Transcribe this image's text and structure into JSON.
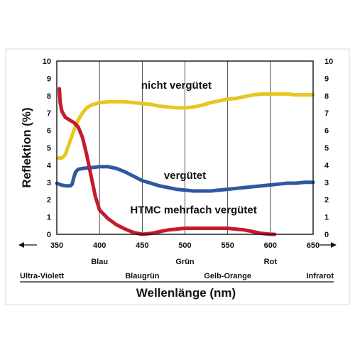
{
  "chart_data": {
    "type": "line",
    "title": "",
    "xlabel": "Wellenlänge (nm)",
    "ylabel": "Reflektion (%)",
    "xlim": [
      350,
      650
    ],
    "ylim": [
      0,
      10
    ],
    "x_ticks": [
      350,
      400,
      450,
      500,
      550,
      600,
      650
    ],
    "y_ticks": [
      0,
      1,
      2,
      3,
      4,
      5,
      6,
      7,
      8,
      9,
      10
    ],
    "grid": {
      "vertical": true,
      "horizontal": false
    },
    "spectrum_labels_top": [
      {
        "text": "Blau",
        "x": 400
      },
      {
        "text": "Grün",
        "x": 500
      },
      {
        "text": "Rot",
        "x": 600
      }
    ],
    "spectrum_labels_bottom": [
      {
        "text": "Ultra-Violett",
        "x": 355
      },
      {
        "text": "Blaugrün",
        "x": 450
      },
      {
        "text": "Gelb-Orange",
        "x": 550
      },
      {
        "text": "Infrarot",
        "x": 650
      }
    ],
    "series": [
      {
        "name": "nicht vergütet",
        "color": "#e6c620",
        "label_pos": {
          "x": 490,
          "y": 8.4
        },
        "points": [
          [
            352,
            4.4
          ],
          [
            356,
            4.4
          ],
          [
            360,
            4.6
          ],
          [
            365,
            5.3
          ],
          [
            370,
            6.0
          ],
          [
            375,
            6.6
          ],
          [
            380,
            7.0
          ],
          [
            385,
            7.3
          ],
          [
            390,
            7.45
          ],
          [
            400,
            7.6
          ],
          [
            410,
            7.65
          ],
          [
            420,
            7.65
          ],
          [
            430,
            7.65
          ],
          [
            440,
            7.6
          ],
          [
            450,
            7.55
          ],
          [
            460,
            7.5
          ],
          [
            470,
            7.4
          ],
          [
            480,
            7.35
          ],
          [
            490,
            7.3
          ],
          [
            500,
            7.3
          ],
          [
            510,
            7.35
          ],
          [
            520,
            7.45
          ],
          [
            530,
            7.6
          ],
          [
            540,
            7.7
          ],
          [
            550,
            7.8
          ],
          [
            560,
            7.85
          ],
          [
            570,
            7.95
          ],
          [
            580,
            8.05
          ],
          [
            590,
            8.1
          ],
          [
            600,
            8.1
          ],
          [
            610,
            8.1
          ],
          [
            620,
            8.1
          ],
          [
            630,
            8.05
          ],
          [
            640,
            8.05
          ],
          [
            650,
            8.05
          ]
        ]
      },
      {
        "name": "vergütet",
        "color": "#2f57a3",
        "label_pos": {
          "x": 500,
          "y": 3.2
        },
        "points": [
          [
            350,
            2.95
          ],
          [
            355,
            2.85
          ],
          [
            360,
            2.8
          ],
          [
            366,
            2.8
          ],
          [
            368,
            2.9
          ],
          [
            370,
            3.3
          ],
          [
            372,
            3.6
          ],
          [
            375,
            3.75
          ],
          [
            380,
            3.8
          ],
          [
            390,
            3.85
          ],
          [
            400,
            3.9
          ],
          [
            410,
            3.9
          ],
          [
            420,
            3.8
          ],
          [
            430,
            3.6
          ],
          [
            440,
            3.35
          ],
          [
            450,
            3.1
          ],
          [
            460,
            2.95
          ],
          [
            470,
            2.8
          ],
          [
            480,
            2.7
          ],
          [
            490,
            2.6
          ],
          [
            500,
            2.55
          ],
          [
            510,
            2.5
          ],
          [
            520,
            2.5
          ],
          [
            530,
            2.5
          ],
          [
            540,
            2.55
          ],
          [
            550,
            2.6
          ],
          [
            560,
            2.65
          ],
          [
            570,
            2.7
          ],
          [
            580,
            2.75
          ],
          [
            590,
            2.8
          ],
          [
            600,
            2.85
          ],
          [
            610,
            2.9
          ],
          [
            620,
            2.95
          ],
          [
            630,
            2.95
          ],
          [
            640,
            3.0
          ],
          [
            650,
            3.0
          ]
        ]
      },
      {
        "name": "HTMC mehrfach vergütet",
        "color": "#c41b2e",
        "label_pos": {
          "x": 510,
          "y": 1.2
        },
        "points": [
          [
            353,
            8.4
          ],
          [
            354,
            7.6
          ],
          [
            356,
            7.1
          ],
          [
            360,
            6.75
          ],
          [
            365,
            6.6
          ],
          [
            370,
            6.45
          ],
          [
            375,
            6.2
          ],
          [
            380,
            5.6
          ],
          [
            385,
            4.6
          ],
          [
            390,
            3.4
          ],
          [
            395,
            2.2
          ],
          [
            400,
            1.4
          ],
          [
            410,
            0.9
          ],
          [
            420,
            0.55
          ],
          [
            430,
            0.3
          ],
          [
            440,
            0.1
          ],
          [
            450,
            0.0
          ],
          [
            460,
            0.05
          ],
          [
            470,
            0.15
          ],
          [
            480,
            0.25
          ],
          [
            490,
            0.3
          ],
          [
            500,
            0.35
          ],
          [
            510,
            0.35
          ],
          [
            520,
            0.35
          ],
          [
            530,
            0.35
          ],
          [
            540,
            0.35
          ],
          [
            550,
            0.35
          ],
          [
            560,
            0.3
          ],
          [
            570,
            0.25
          ],
          [
            580,
            0.15
          ],
          [
            590,
            0.05
          ],
          [
            600,
            0.0
          ],
          [
            605,
            0.0
          ]
        ]
      }
    ]
  }
}
